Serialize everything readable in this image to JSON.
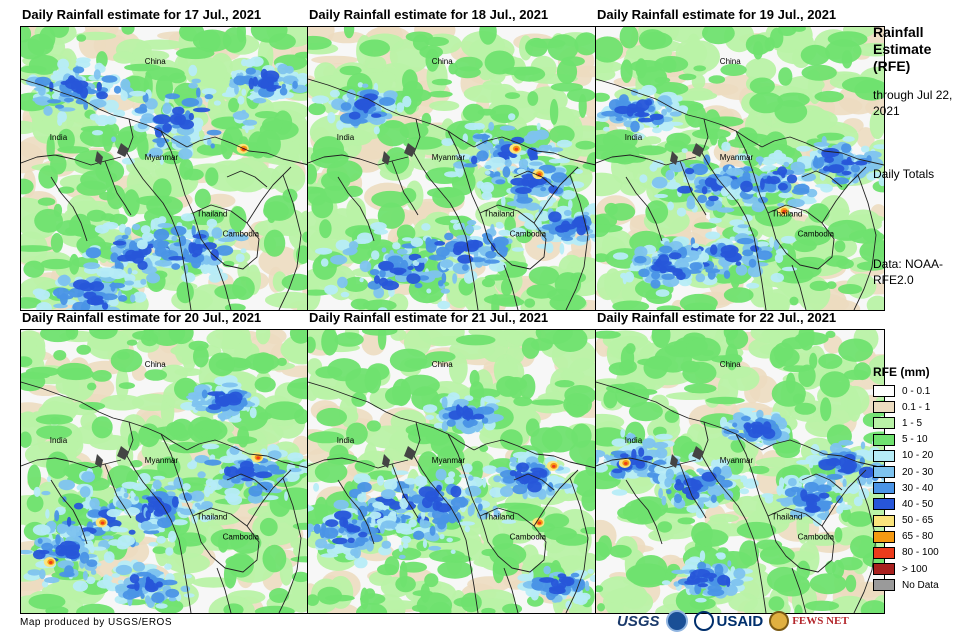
{
  "panels": [
    {
      "title": "Daily Rainfall estimate for 17 Jul., 2021"
    },
    {
      "title": "Daily Rainfall estimate for 18 Jul., 2021"
    },
    {
      "title": "Daily Rainfall estimate for 19 Jul., 2021"
    },
    {
      "title": "Daily Rainfall estimate for 20 Jul., 2021"
    },
    {
      "title": "Daily Rainfall estimate for 21 Jul., 2021"
    },
    {
      "title": "Daily Rainfall estimate for 22 Jul., 2021"
    }
  ],
  "map_labels": {
    "china": "China",
    "india": "India",
    "myanmar": "Myanmar",
    "thailand": "Thailand",
    "cambodia": "Cambodia"
  },
  "side": {
    "title": "Rainfall Estimate (RFE)",
    "through": "through Jul 22, 2021",
    "daily": "Daily Totals",
    "data": "Data: NOAA-RFE2.0"
  },
  "legend": {
    "title": "RFE (mm)",
    "items": [
      {
        "label": "0 - 0.1",
        "color": "#ffffff"
      },
      {
        "label": "0.1 - 1",
        "color": "#ecdcc0"
      },
      {
        "label": "1 - 5",
        "color": "#b9f2a6"
      },
      {
        "label": "5 - 10",
        "color": "#6fe26f"
      },
      {
        "label": "10 - 20",
        "color": "#b6ecf7"
      },
      {
        "label": "20 - 30",
        "color": "#7ec3ef"
      },
      {
        "label": "30 - 40",
        "color": "#4a94e6"
      },
      {
        "label": "40 - 50",
        "color": "#2756d9"
      },
      {
        "label": "50 - 65",
        "color": "#fae47c"
      },
      {
        "label": "65 - 80",
        "color": "#f59a12"
      },
      {
        "label": "80 - 100",
        "color": "#ec3b1b"
      },
      {
        "label": "> 100",
        "color": "#a8201e"
      },
      {
        "label": "No Data",
        "color": "#9a9a9a"
      }
    ]
  },
  "credit": "Map produced by USGS/EROS",
  "logos": {
    "usgs": "USGS",
    "usaid": "USAID",
    "fews": "FEWS NET"
  }
}
